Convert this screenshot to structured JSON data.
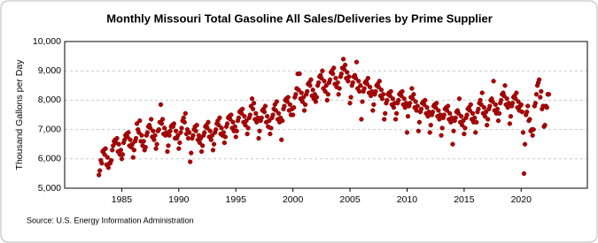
{
  "chart_data": {
    "type": "scatter",
    "title": "Monthly Missouri Total Gasoline All Sales/Deliveries by Prime Supplier",
    "y_label": "Thousand Gallons per Day",
    "source": "Source: U.S. Energy Information Administration",
    "color": "#b00000",
    "grid": true,
    "xlim": [
      1980,
      2025.8
    ],
    "ylim": [
      5000,
      10000
    ],
    "xticks": [
      1985,
      1990,
      1995,
      2000,
      2005,
      2010,
      2015,
      2020
    ],
    "yticks": [
      {
        "value": 5000,
        "label": "5,000"
      },
      {
        "value": 6000,
        "label": "6,000"
      },
      {
        "value": 7000,
        "label": "7,000"
      },
      {
        "value": 8000,
        "label": "8,000"
      },
      {
        "value": 9000,
        "label": "9,000"
      },
      {
        "value": 10000,
        "label": "10,000"
      }
    ],
    "x": [
      1983,
      1983.08,
      1983.17,
      1983.25,
      1983.33,
      1983.42,
      1983.5,
      1983.58,
      1983.67,
      1983.75,
      1983.83,
      1983.92,
      1984,
      1984.08,
      1984.17,
      1984.25,
      1984.33,
      1984.42,
      1984.5,
      1984.58,
      1984.67,
      1984.75,
      1984.83,
      1984.92,
      1985,
      1985.08,
      1985.17,
      1985.25,
      1985.33,
      1985.42,
      1985.5,
      1985.58,
      1985.67,
      1985.75,
      1985.83,
      1985.92,
      1986,
      1986.08,
      1986.17,
      1986.25,
      1986.33,
      1986.42,
      1986.5,
      1986.58,
      1986.67,
      1986.75,
      1986.83,
      1986.92,
      1987,
      1987.08,
      1987.17,
      1987.25,
      1987.33,
      1987.42,
      1987.5,
      1987.58,
      1987.67,
      1987.75,
      1987.83,
      1987.92,
      1988,
      1988.08,
      1988.17,
      1988.25,
      1988.33,
      1988.42,
      1988.5,
      1988.58,
      1988.67,
      1988.75,
      1988.83,
      1988.92,
      1989,
      1989.08,
      1989.17,
      1989.25,
      1989.33,
      1989.42,
      1989.5,
      1989.58,
      1989.67,
      1989.75,
      1989.83,
      1989.92,
      1990,
      1990.08,
      1990.17,
      1990.25,
      1990.33,
      1990.42,
      1990.5,
      1990.58,
      1990.67,
      1990.75,
      1990.83,
      1990.92,
      1991,
      1991.08,
      1991.17,
      1991.25,
      1991.33,
      1991.42,
      1991.5,
      1991.58,
      1991.67,
      1991.75,
      1991.83,
      1991.92,
      1992,
      1992.08,
      1992.17,
      1992.25,
      1992.33,
      1992.42,
      1992.5,
      1992.58,
      1992.67,
      1992.75,
      1992.83,
      1992.92,
      1993,
      1993.08,
      1993.17,
      1993.25,
      1993.33,
      1993.42,
      1993.5,
      1993.58,
      1993.67,
      1993.75,
      1993.83,
      1993.92,
      1994,
      1994.08,
      1994.17,
      1994.25,
      1994.33,
      1994.42,
      1994.5,
      1994.58,
      1994.67,
      1994.75,
      1994.83,
      1994.92,
      1995,
      1995.08,
      1995.17,
      1995.25,
      1995.33,
      1995.42,
      1995.5,
      1995.58,
      1995.67,
      1995.75,
      1995.83,
      1995.92,
      1996,
      1996.08,
      1996.17,
      1996.25,
      1996.33,
      1996.42,
      1996.5,
      1996.58,
      1996.67,
      1996.75,
      1996.83,
      1996.92,
      1997,
      1997.08,
      1997.17,
      1997.25,
      1997.33,
      1997.42,
      1997.5,
      1997.58,
      1997.67,
      1997.75,
      1997.83,
      1997.92,
      1998,
      1998.08,
      1998.17,
      1998.25,
      1998.33,
      1998.42,
      1998.5,
      1998.58,
      1998.67,
      1998.75,
      1998.83,
      1998.92,
      1999,
      1999.08,
      1999.17,
      1999.25,
      1999.33,
      1999.42,
      1999.5,
      1999.58,
      1999.67,
      1999.75,
      1999.83,
      1999.92,
      2000,
      2000.08,
      2000.17,
      2000.25,
      2000.33,
      2000.42,
      2000.5,
      2000.58,
      2000.67,
      2000.75,
      2000.83,
      2000.92,
      2001,
      2001.08,
      2001.17,
      2001.25,
      2001.33,
      2001.42,
      2001.5,
      2001.58,
      2001.67,
      2001.75,
      2001.83,
      2001.92,
      2002,
      2002.08,
      2002.17,
      2002.25,
      2002.33,
      2002.42,
      2002.5,
      2002.58,
      2002.67,
      2002.75,
      2002.83,
      2002.92,
      2003,
      2003.08,
      2003.17,
      2003.25,
      2003.33,
      2003.42,
      2003.5,
      2003.58,
      2003.67,
      2003.75,
      2003.83,
      2003.92,
      2004,
      2004.08,
      2004.17,
      2004.25,
      2004.33,
      2004.42,
      2004.5,
      2004.58,
      2004.67,
      2004.75,
      2004.83,
      2004.92,
      2005,
      2005.08,
      2005.17,
      2005.25,
      2005.33,
      2005.42,
      2005.5,
      2005.58,
      2005.67,
      2005.75,
      2005.83,
      2005.92,
      2006,
      2006.08,
      2006.17,
      2006.25,
      2006.33,
      2006.42,
      2006.5,
      2006.58,
      2006.67,
      2006.75,
      2006.83,
      2006.92,
      2007,
      2007.08,
      2007.17,
      2007.25,
      2007.33,
      2007.42,
      2007.5,
      2007.58,
      2007.67,
      2007.75,
      2007.83,
      2007.92,
      2008,
      2008.08,
      2008.17,
      2008.25,
      2008.33,
      2008.42,
      2008.5,
      2008.58,
      2008.67,
      2008.75,
      2008.83,
      2008.92,
      2009,
      2009.08,
      2009.17,
      2009.25,
      2009.33,
      2009.42,
      2009.5,
      2009.58,
      2009.67,
      2009.75,
      2009.83,
      2009.92,
      2010,
      2010.08,
      2010.17,
      2010.25,
      2010.33,
      2010.42,
      2010.5,
      2010.58,
      2010.67,
      2010.75,
      2010.83,
      2010.92,
      2011,
      2011.08,
      2011.17,
      2011.25,
      2011.33,
      2011.42,
      2011.5,
      2011.58,
      2011.67,
      2011.75,
      2011.83,
      2011.92,
      2012,
      2012.08,
      2012.17,
      2012.25,
      2012.33,
      2012.42,
      2012.5,
      2012.58,
      2012.67,
      2012.75,
      2012.83,
      2012.92,
      2013,
      2013.08,
      2013.17,
      2013.25,
      2013.33,
      2013.42,
      2013.5,
      2013.58,
      2013.67,
      2013.75,
      2013.83,
      2013.92,
      2014,
      2014.08,
      2014.17,
      2014.25,
      2014.33,
      2014.42,
      2014.5,
      2014.58,
      2014.67,
      2014.75,
      2014.83,
      2014.92,
      2015,
      2015.08,
      2015.17,
      2015.25,
      2015.33,
      2015.42,
      2015.5,
      2015.58,
      2015.67,
      2015.75,
      2015.83,
      2015.92,
      2016,
      2016.08,
      2016.17,
      2016.25,
      2016.33,
      2016.42,
      2016.5,
      2016.58,
      2016.67,
      2016.75,
      2016.83,
      2016.92,
      2017,
      2017.08,
      2017.17,
      2017.25,
      2017.33,
      2017.42,
      2017.5,
      2017.58,
      2017.67,
      2017.75,
      2017.83,
      2017.92,
      2018,
      2018.08,
      2018.17,
      2018.25,
      2018.33,
      2018.42,
      2018.5,
      2018.58,
      2018.67,
      2018.75,
      2018.83,
      2018.92,
      2019,
      2019.08,
      2019.17,
      2019.25,
      2019.33,
      2019.42,
      2019.5,
      2019.58,
      2019.67,
      2019.75,
      2019.83,
      2019.92,
      2020,
      2020.08,
      2020.17,
      2020.25,
      2020.33,
      2020.42,
      2020.5,
      2020.58,
      2020.67,
      2020.75,
      2020.83,
      2020.92,
      2021,
      2021.08,
      2021.17,
      2021.25,
      2021.33,
      2021.42,
      2021.5,
      2021.58,
      2021.67,
      2021.75,
      2021.83,
      2021.92,
      2022,
      2022.08,
      2022.17,
      2022.25,
      2022.33,
      2022.42
    ],
    "values": [
      5450,
      5600,
      5950,
      5850,
      6250,
      6300,
      6150,
      6350,
      5800,
      6050,
      5700,
      5850,
      5850,
      5950,
      6300,
      6450,
      6600,
      6650,
      6550,
      6700,
      6250,
      6500,
      6150,
      6300,
      6000,
      6150,
      6550,
      6650,
      6800,
      6850,
      6750,
      6900,
      6450,
      6650,
      6400,
      6500,
      6050,
      6300,
      6600,
      6700,
      7200,
      7000,
      6900,
      7300,
      6600,
      6800,
      6450,
      6600,
      6300,
      6400,
      6800,
      6900,
      7100,
      7150,
      7050,
      7350,
      6750,
      6950,
      6650,
      6800,
      6350,
      6500,
      6950,
      7000,
      7250,
      7850,
      7200,
      7350,
      6850,
      7050,
      6800,
      6900,
      6250,
      6450,
      6800,
      6950,
      7100,
      7150,
      7100,
      7200,
      6700,
      6950,
      6700,
      6800,
      6350,
      6550,
      6900,
      7050,
      7300,
      7400,
      7250,
      7550,
      6850,
      7000,
      6700,
      6900,
      5900,
      6200,
      6700,
      6800,
      7000,
      7100,
      6950,
      7150,
      6650,
      6800,
      6550,
      6700,
      6250,
      6450,
      6800,
      6900,
      7100,
      7150,
      7050,
      7250,
      6750,
      6950,
      6650,
      6800,
      6300,
      6500,
      6900,
      7000,
      7200,
      7300,
      7150,
      7400,
      6850,
      7050,
      6800,
      6900,
      6550,
      6750,
      7100,
      7200,
      7400,
      7450,
      7350,
      7500,
      7050,
      7250,
      6950,
      7100,
      6750,
      6950,
      7300,
      7400,
      7600,
      7650,
      7550,
      7700,
      7250,
      7450,
      7150,
      7300,
      6850,
      7050,
      7400,
      7500,
      7800,
      8050,
      7700,
      7900,
      7350,
      7550,
      7250,
      7400,
      6700,
      6950,
      7300,
      7400,
      7650,
      7700,
      7600,
      7800,
      7250,
      7450,
      7100,
      7300,
      6850,
      7050,
      7400,
      7500,
      7700,
      7850,
      7650,
      7950,
      7350,
      7550,
      7250,
      7400,
      6650,
      7300,
      7700,
      7800,
      8000,
      8050,
      7950,
      8100,
      7650,
      7850,
      7500,
      7700,
      7500,
      7750,
      8100,
      8200,
      8400,
      8900,
      8350,
      8900,
      8050,
      8250,
      7950,
      8100,
      7650,
      7850,
      8200,
      8300,
      8550,
      8600,
      8500,
      8700,
      8150,
      8350,
      8050,
      8200,
      7950,
      8100,
      8500,
      8600,
      8800,
      8850,
      8750,
      9000,
      8400,
      8650,
      8300,
      8500,
      8000,
      8200,
      8600,
      8700,
      8950,
      9000,
      8900,
      9100,
      8550,
      8750,
      8450,
      8600,
      8200,
      8400,
      8800,
      8900,
      9100,
      9400,
      9050,
      9200,
      8750,
      8950,
      8650,
      8800,
      7900,
      8100,
      8500,
      8600,
      8800,
      8850,
      8750,
      9300,
      8400,
      8650,
      8300,
      8500,
      7350,
      7950,
      8300,
      8400,
      8600,
      8650,
      8550,
      8750,
      8250,
      8450,
      8150,
      8300,
      7650,
      7850,
      8200,
      8300,
      8500,
      8550,
      8450,
      8650,
      8150,
      8350,
      8050,
      8200,
      7350,
      7550,
      7900,
      8000,
      8200,
      8250,
      8150,
      8300,
      7850,
      8050,
      7750,
      7900,
      7350,
      7550,
      7900,
      8000,
      8200,
      8250,
      8150,
      8300,
      7850,
      8050,
      7750,
      7900,
      6900,
      7450,
      7800,
      7900,
      8100,
      8400,
      8050,
      8200,
      7750,
      7950,
      7650,
      7800,
      6950,
      7250,
      7600,
      7700,
      7900,
      7950,
      7850,
      8000,
      7550,
      7750,
      7450,
      7600,
      6900,
      7150,
      7500,
      7600,
      7800,
      7850,
      7750,
      7900,
      7450,
      7650,
      7350,
      7500,
      6800,
      7050,
      7400,
      7500,
      7700,
      7750,
      7650,
      7800,
      7350,
      7550,
      7250,
      7400,
      6500,
      6950,
      7300,
      7400,
      7600,
      7650,
      7550,
      8050,
      7250,
      7450,
      7150,
      7300,
      6850,
      7050,
      7400,
      7500,
      7700,
      7750,
      7650,
      7850,
      7350,
      7550,
      7250,
      7400,
      6900,
      7250,
      7600,
      7700,
      7900,
      8000,
      7850,
      8250,
      7550,
      7750,
      7450,
      7600,
      7150,
      7350,
      7700,
      7800,
      8000,
      8050,
      7950,
      8650,
      7650,
      7850,
      7550,
      7700,
      7300,
      7550,
      7900,
      8000,
      8200,
      8250,
      8150,
      8500,
      7850,
      8050,
      7750,
      7900,
      7200,
      7450,
      7800,
      7900,
      8100,
      8150,
      8050,
      8250,
      7750,
      7950,
      7650,
      7800,
      7850,
      7600,
      6900,
      5500,
      6500,
      7500,
      7600,
      7800,
      7300,
      7350,
      6950,
      7000,
      6800,
      7000,
      7800,
      7900,
      8200,
      8500,
      8600,
      8700,
      8100,
      8300,
      7700,
      7800,
      7100,
      7150,
      7800,
      7750,
      8200,
      8200
    ]
  }
}
